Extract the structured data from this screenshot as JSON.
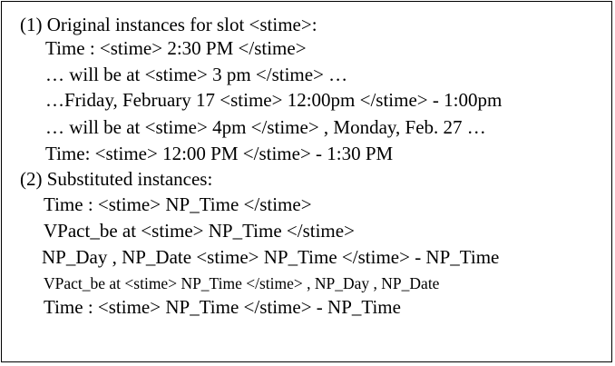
{
  "figure": {
    "section1": {
      "heading": "(1) Original instances for slot <stime>:",
      "lines": [
        "Time : <stime> 2:30 PM </stime>",
        "… will be at <stime> 3 pm </stime> …",
        "…Friday, February 17 <stime> 12:00pm </stime> - 1:00pm",
        "… will be at <stime> 4pm </stime> , Monday, Feb. 27 …",
        "Time: <stime> 12:00 PM </stime> - 1:30 PM"
      ]
    },
    "section2": {
      "heading": "(2) Substituted instances:",
      "lines": [
        "Time : <stime> NP_Time </stime>",
        "VPact_be at <stime> NP_Time </stime>",
        "NP_Day , NP_Date <stime> NP_Time </stime> - NP_Time",
        "VPact_be at <stime> NP_Time </stime> , NP_Day , NP_Date",
        "Time : <stime> NP_Time </stime> - NP_Time"
      ]
    }
  }
}
